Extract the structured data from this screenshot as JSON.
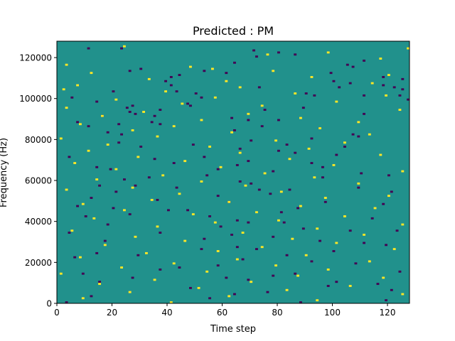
{
  "chart_data": {
    "type": "heatmap",
    "title": "Predicted : PM",
    "xlabel": "Time step",
    "ylabel": "Frequency (Hz)",
    "xlim": [
      0,
      128
    ],
    "ylim": [
      0,
      128000
    ],
    "x_ticks": [
      0,
      20,
      40,
      60,
      80,
      100,
      120
    ],
    "y_ticks": [
      0,
      20000,
      40000,
      60000,
      80000,
      100000,
      120000
    ],
    "y_tick_labels": [
      "0",
      "20000",
      "40000",
      "60000",
      "80000",
      "100000",
      "120000"
    ],
    "n_time_steps": 128,
    "n_frequency_bins": 128,
    "grid": false,
    "legend": "none",
    "colormap": "viridis",
    "colors": {
      "background": "#21918c",
      "low": "#440154",
      "high": "#fde725"
    },
    "background_value": 0,
    "cell_values": {
      "low": -1,
      "high": 1
    },
    "cells_low": [
      [
        11,
        124
      ],
      [
        23,
        124
      ],
      [
        71,
        123
      ],
      [
        80,
        122
      ],
      [
        86,
        121
      ],
      [
        72,
        120
      ],
      [
        111,
        118
      ],
      [
        64,
        117
      ],
      [
        105,
        116
      ],
      [
        107,
        115
      ],
      [
        30,
        114
      ],
      [
        26,
        113
      ],
      [
        53,
        113
      ],
      [
        61,
        112
      ],
      [
        99,
        112
      ],
      [
        44,
        111
      ],
      [
        41,
        110
      ],
      [
        118,
        110
      ],
      [
        125,
        109
      ],
      [
        39,
        108
      ],
      [
        100,
        108
      ],
      [
        106,
        107
      ],
      [
        41,
        106
      ],
      [
        118,
        106
      ],
      [
        73,
        105
      ],
      [
        102,
        105
      ],
      [
        122,
        105
      ],
      [
        125,
        104
      ],
      [
        20,
        103
      ],
      [
        43,
        103
      ],
      [
        50,
        102
      ],
      [
        90,
        102
      ],
      [
        93,
        101
      ],
      [
        111,
        101
      ],
      [
        124,
        101
      ],
      [
        5,
        100
      ],
      [
        52,
        100
      ],
      [
        127,
        99
      ],
      [
        14,
        98
      ],
      [
        47,
        97
      ],
      [
        27,
        96
      ],
      [
        48,
        96
      ],
      [
        25,
        95
      ],
      [
        89,
        95
      ],
      [
        75,
        94
      ],
      [
        37,
        94
      ],
      [
        26,
        93
      ],
      [
        28,
        92
      ],
      [
        111,
        92
      ],
      [
        16,
        91
      ],
      [
        35,
        91
      ],
      [
        63,
        90
      ],
      [
        69,
        89
      ],
      [
        80,
        89
      ],
      [
        7,
        88
      ],
      [
        34,
        88
      ],
      [
        22,
        87
      ],
      [
        37,
        87
      ],
      [
        11,
        86
      ],
      [
        74,
        86
      ],
      [
        95,
        85
      ],
      [
        64,
        84
      ],
      [
        18,
        83
      ],
      [
        23,
        82
      ],
      [
        107,
        82
      ],
      [
        109,
        81
      ],
      [
        92,
        80
      ],
      [
        70,
        79
      ],
      [
        22,
        78
      ],
      [
        83,
        77
      ],
      [
        49,
        77
      ],
      [
        104,
        76
      ],
      [
        30,
        76
      ],
      [
        66,
        75
      ],
      [
        80,
        74
      ],
      [
        86,
        73
      ],
      [
        101,
        72
      ],
      [
        4,
        71
      ],
      [
        53,
        71
      ],
      [
        35,
        70
      ],
      [
        69,
        69
      ],
      [
        42,
        68
      ],
      [
        92,
        68
      ],
      [
        65,
        67
      ],
      [
        14,
        66
      ],
      [
        96,
        66
      ],
      [
        19,
        65
      ],
      [
        58,
        65
      ],
      [
        78,
        64
      ],
      [
        110,
        63
      ],
      [
        120,
        62
      ],
      [
        54,
        62
      ],
      [
        33,
        61
      ],
      [
        96,
        61
      ],
      [
        24,
        60
      ],
      [
        66,
        59
      ],
      [
        70,
        58
      ],
      [
        15,
        57
      ],
      [
        28,
        57
      ],
      [
        43,
        56
      ],
      [
        109,
        56
      ],
      [
        73,
        55
      ],
      [
        84,
        55
      ],
      [
        21,
        54
      ],
      [
        121,
        54
      ],
      [
        77,
        53
      ],
      [
        58,
        52
      ],
      [
        12,
        51
      ],
      [
        36,
        50
      ],
      [
        62,
        49
      ],
      [
        97,
        49
      ],
      [
        118,
        48
      ],
      [
        7,
        47
      ],
      [
        20,
        46
      ],
      [
        87,
        46
      ],
      [
        40,
        45
      ],
      [
        47,
        45
      ],
      [
        81,
        44
      ],
      [
        26,
        43
      ],
      [
        10,
        42
      ],
      [
        55,
        42
      ],
      [
        114,
        41
      ],
      [
        65,
        40
      ],
      [
        69,
        39
      ],
      [
        82,
        39
      ],
      [
        18,
        38
      ],
      [
        59,
        37
      ],
      [
        89,
        36
      ],
      [
        106,
        35
      ],
      [
        123,
        35
      ],
      [
        4,
        34
      ],
      [
        37,
        34
      ],
      [
        63,
        33
      ],
      [
        78,
        32
      ],
      [
        53,
        31
      ],
      [
        17,
        30
      ],
      [
        95,
        30
      ],
      [
        111,
        29
      ],
      [
        119,
        28
      ],
      [
        65,
        27
      ],
      [
        52,
        26
      ],
      [
        72,
        26
      ],
      [
        100,
        25
      ],
      [
        14,
        24
      ],
      [
        29,
        23
      ],
      [
        83,
        23
      ],
      [
        6,
        22
      ],
      [
        67,
        21
      ],
      [
        92,
        20
      ],
      [
        108,
        19
      ],
      [
        58,
        18
      ],
      [
        44,
        17
      ],
      [
        37,
        16
      ],
      [
        124,
        15
      ],
      [
        9,
        14
      ],
      [
        86,
        14
      ],
      [
        78,
        13
      ],
      [
        27,
        12
      ],
      [
        61,
        12
      ],
      [
        69,
        11
      ],
      [
        15,
        10
      ],
      [
        101,
        10
      ],
      [
        116,
        9
      ],
      [
        98,
        8
      ],
      [
        48,
        7
      ],
      [
        121,
        6
      ],
      [
        76,
        5
      ],
      [
        64,
        4
      ],
      [
        12,
        3
      ],
      [
        55,
        2
      ],
      [
        119,
        1
      ],
      [
        3,
        0
      ],
      [
        88,
        0
      ]
    ],
    "cells_high": [
      [
        24,
        125
      ],
      [
        127,
        124
      ],
      [
        98,
        122
      ],
      [
        76,
        121
      ],
      [
        117,
        119
      ],
      [
        3,
        116
      ],
      [
        48,
        115
      ],
      [
        56,
        114
      ],
      [
        78,
        113
      ],
      [
        12,
        112
      ],
      [
        120,
        111
      ],
      [
        92,
        110
      ],
      [
        33,
        109
      ],
      [
        61,
        108
      ],
      [
        114,
        107
      ],
      [
        7,
        106
      ],
      [
        66,
        105
      ],
      [
        2,
        104
      ],
      [
        39,
        103
      ],
      [
        86,
        102
      ],
      [
        119,
        101
      ],
      [
        57,
        100
      ],
      [
        21,
        99
      ],
      [
        101,
        98
      ],
      [
        45,
        97
      ],
      [
        74,
        96
      ],
      [
        3,
        95
      ],
      [
        124,
        94
      ],
      [
        31,
        93
      ],
      [
        69,
        92
      ],
      [
        16,
        91
      ],
      [
        88,
        90
      ],
      [
        52,
        89
      ],
      [
        109,
        88
      ],
      [
        8,
        87
      ],
      [
        42,
        86
      ],
      [
        95,
        85
      ],
      [
        27,
        84
      ],
      [
        63,
        83
      ],
      [
        113,
        82
      ],
      [
        36,
        81
      ],
      [
        1,
        80
      ],
      [
        79,
        79
      ],
      [
        104,
        78
      ],
      [
        18,
        77
      ],
      [
        55,
        76
      ],
      [
        91,
        75
      ],
      [
        11,
        74
      ],
      [
        66,
        73
      ],
      [
        117,
        72
      ],
      [
        29,
        71
      ],
      [
        84,
        70
      ],
      [
        46,
        69
      ],
      [
        6,
        68
      ],
      [
        100,
        67
      ],
      [
        59,
        66
      ],
      [
        21,
        65
      ],
      [
        125,
        64
      ],
      [
        75,
        63
      ],
      [
        38,
        62
      ],
      [
        93,
        61
      ],
      [
        14,
        60
      ],
      [
        52,
        59
      ],
      [
        109,
        58
      ],
      [
        68,
        57
      ],
      [
        27,
        56
      ],
      [
        3,
        55
      ],
      [
        81,
        54
      ],
      [
        44,
        53
      ],
      [
        120,
        52
      ],
      [
        97,
        51
      ],
      [
        34,
        50
      ],
      [
        62,
        49
      ],
      [
        9,
        48
      ],
      [
        88,
        47
      ],
      [
        115,
        46
      ],
      [
        24,
        45
      ],
      [
        72,
        44
      ],
      [
        49,
        43
      ],
      [
        104,
        42
      ],
      [
        13,
        41
      ],
      [
        80,
        40
      ],
      [
        57,
        39
      ],
      [
        125,
        38
      ],
      [
        36,
        37
      ],
      [
        94,
        36
      ],
      [
        5,
        35
      ],
      [
        67,
        34
      ],
      [
        111,
        33
      ],
      [
        28,
        32
      ],
      [
        85,
        31
      ],
      [
        46,
        30
      ],
      [
        101,
        29
      ],
      [
        17,
        28
      ],
      [
        74,
        27
      ],
      [
        122,
        26
      ],
      [
        58,
        25
      ],
      [
        32,
        24
      ],
      [
        90,
        23
      ],
      [
        8,
        22
      ],
      [
        65,
        21
      ],
      [
        113,
        20
      ],
      [
        42,
        19
      ],
      [
        79,
        18
      ],
      [
        23,
        17
      ],
      [
        98,
        16
      ],
      [
        54,
        15
      ],
      [
        1,
        14
      ],
      [
        87,
        13
      ],
      [
        118,
        12
      ],
      [
        35,
        11
      ],
      [
        70,
        10
      ],
      [
        15,
        9
      ],
      [
        106,
        8
      ],
      [
        51,
        7
      ],
      [
        83,
        6
      ],
      [
        26,
        5
      ],
      [
        125,
        4
      ],
      [
        62,
        3
      ],
      [
        9,
        2
      ],
      [
        94,
        1
      ],
      [
        41,
        0
      ]
    ]
  }
}
